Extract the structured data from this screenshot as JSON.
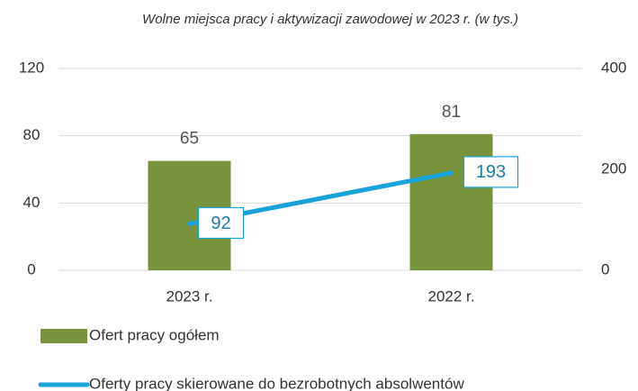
{
  "chart_data": {
    "type": "bar-line",
    "title": "Wolne miejsca pracy i aktywizacji zawodowej w 2023 r. (w tys.)",
    "categories": [
      "2023 r.",
      "2022 r."
    ],
    "series": [
      {
        "name": "Ofert pracy ogółem",
        "type": "bar",
        "color": "#77933c",
        "values": [
          65,
          81
        ]
      },
      {
        "name": "Oferty pracy skierowane do bezrobotnych absolwentów",
        "type": "line",
        "color": "#19a3d9",
        "axis": "y2",
        "values": [
          92,
          193
        ]
      }
    ],
    "ylim": [
      0,
      120
    ],
    "yticks": [
      0,
      40,
      80,
      120
    ],
    "y2lim": [
      0,
      400
    ],
    "y2ticks": [
      0,
      200,
      400
    ],
    "grid": true,
    "legend": "bottom-left"
  }
}
